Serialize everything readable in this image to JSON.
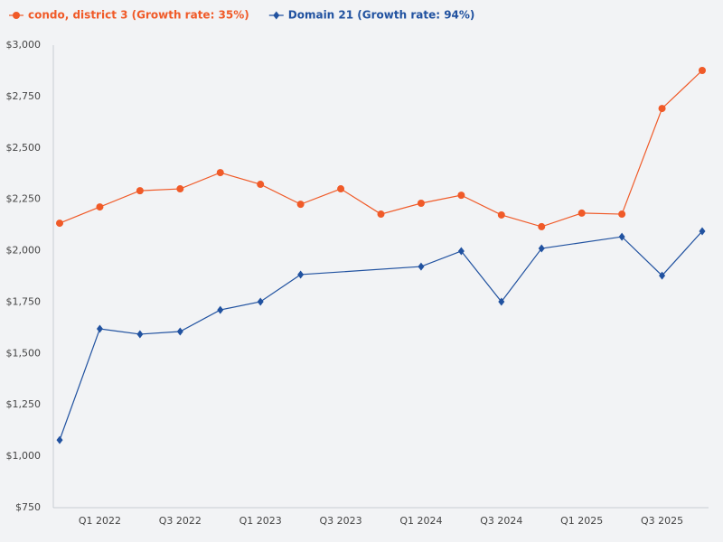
{
  "chart_data": {
    "type": "line",
    "categories": [
      null,
      "Q1 2022",
      null,
      "Q3 2022",
      null,
      "Q1 2023",
      null,
      "Q3 2023",
      null,
      "Q1 2024",
      null,
      "Q3 2024",
      null,
      "Q1 2025",
      null,
      "Q3 2025",
      null
    ],
    "series": [
      {
        "name": "condo, district 3 (Growth rate: 35%)",
        "color": "#f05a28",
        "marker": "circle",
        "values": [
          2134,
          2213,
          2292,
          2301,
          2380,
          2323,
          2226,
          2301,
          2178,
          2231,
          2270,
          2174,
          2117,
          2183,
          2178,
          2692,
          2877
        ]
      },
      {
        "name": "Domain 21 (Growth rate: 94%)",
        "color": "#2152a0",
        "marker": "diamond",
        "values": [
          1079,
          1620,
          1594,
          1607,
          1712,
          1752,
          1884,
          null,
          null,
          1923,
          1998,
          1752,
          2011,
          null,
          2068,
          1879,
          2095
        ]
      }
    ],
    "span_gaps": true,
    "ylim": [
      750,
      3000
    ],
    "yticks": [
      {
        "value": 750,
        "label": "$750"
      },
      {
        "value": 1000,
        "label": "$1,000"
      },
      {
        "value": 1250,
        "label": "$1,250"
      },
      {
        "value": 1500,
        "label": "$1,500"
      },
      {
        "value": 1750,
        "label": "$1,750"
      },
      {
        "value": 2000,
        "label": "$2,000"
      },
      {
        "value": 2250,
        "label": "$2,250"
      },
      {
        "value": 2500,
        "label": "$2,500"
      },
      {
        "value": 2750,
        "label": "$2,750"
      },
      {
        "value": 3000,
        "label": "$3,000"
      }
    ],
    "grid": false,
    "legend": "top-left"
  }
}
